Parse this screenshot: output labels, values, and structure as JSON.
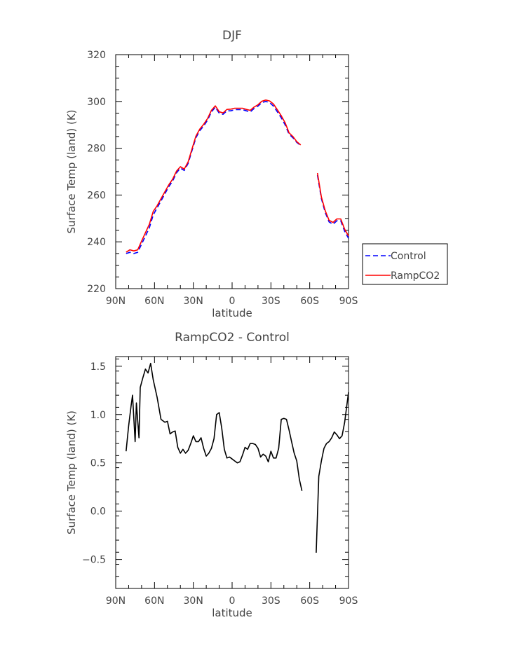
{
  "chart_data": [
    {
      "type": "line",
      "title": "DJF",
      "xlabel": "latitude",
      "ylabel": "Surface Temp (land) (K)",
      "xlim": [
        -90,
        90
      ],
      "ylim": [
        220,
        320
      ],
      "x_note": "x is latitude in degrees; negative = north (90N at left), positive = south (90S at right)",
      "x_ticks": [
        -90,
        -60,
        -30,
        0,
        30,
        60,
        90
      ],
      "x_tick_labels": [
        "90N",
        "60N",
        "30N",
        "0",
        "30S",
        "60S",
        "90S"
      ],
      "y_ticks": [
        220,
        240,
        260,
        280,
        300,
        320
      ],
      "y_tick_labels": [
        "220",
        "240",
        "260",
        "280",
        "300",
        "320"
      ],
      "legend": {
        "position": "outside-right",
        "entries": [
          "Control",
          "RampCO2"
        ]
      },
      "series": [
        {
          "name": "Control",
          "color": "#0000ff",
          "dash": "dashed",
          "segments": [
            {
              "x": [
                -82,
                -79,
                -76,
                -73,
                -70,
                -67,
                -64,
                -61,
                -58,
                -55,
                -52,
                -49,
                -46,
                -43,
                -40,
                -37,
                -34,
                -31,
                -28,
                -25,
                -22,
                -19,
                -16,
                -13,
                -10,
                -7,
                -4,
                -1,
                2,
                5,
                8,
                11,
                14,
                17,
                20,
                23,
                26,
                29,
                32,
                35,
                38,
                41,
                44,
                47,
                50,
                53
              ],
              "y": [
                235,
                235.5,
                235,
                235.5,
                239,
                242.5,
                246,
                251.5,
                254.5,
                257.5,
                260.5,
                263.5,
                266,
                269.5,
                271.5,
                270.5,
                273.5,
                279,
                284.5,
                287.5,
                289.5,
                292,
                295.5,
                297.5,
                295,
                294.5,
                296,
                296,
                296.5,
                296.5,
                296.5,
                296,
                295.5,
                297,
                298,
                299.5,
                300,
                299.5,
                298,
                295.5,
                293,
                290,
                286,
                284.5,
                282.5,
                281.2
              ]
            },
            {
              "x": [
                66,
                69,
                72,
                75,
                78,
                81,
                84,
                87,
                90
              ],
              "y": [
                268.5,
                258.5,
                252.5,
                248.5,
                247.5,
                249,
                249,
                244.5,
                241.5
              ]
            }
          ]
        },
        {
          "name": "RampCO2",
          "color": "#ff0000",
          "dash": "solid",
          "segments": [
            {
              "x": [
                -82,
                -79,
                -76,
                -73,
                -70,
                -67,
                -64,
                -61,
                -58,
                -55,
                -52,
                -49,
                -46,
                -43,
                -40,
                -37,
                -34,
                -31,
                -28,
                -25,
                -22,
                -19,
                -16,
                -13,
                -10,
                -7,
                -4,
                -1,
                2,
                5,
                8,
                11,
                14,
                17,
                20,
                23,
                26,
                29,
                32,
                35,
                38,
                41,
                44,
                47,
                50,
                53
              ],
              "y": [
                235.6,
                236.6,
                236.1,
                236.6,
                240.3,
                243.9,
                247.5,
                253,
                255.4,
                258.4,
                261.4,
                264.3,
                266.8,
                270.2,
                272.1,
                271.1,
                274.2,
                279.7,
                285.2,
                288.2,
                290.2,
                292.7,
                296.2,
                298.1,
                295.6,
                295.1,
                296.6,
                296.7,
                297.1,
                297.1,
                297.1,
                296.6,
                296.2,
                297.6,
                298.6,
                300.1,
                300.6,
                300.2,
                298.9,
                296.4,
                293.9,
                290.9,
                286.6,
                285,
                282.8,
                281.4
              ]
            },
            {
              "x": [
                66,
                69,
                72,
                75,
                78,
                81,
                84,
                87,
                90
              ],
              "y": [
                269.4,
                259.2,
                253.3,
                249.2,
                248.3,
                249.8,
                249.8,
                245.4,
                242.5
              ]
            }
          ]
        }
      ]
    },
    {
      "type": "line",
      "title": "RampCO2 - Control",
      "xlabel": "latitude",
      "ylabel": "Surface Temp (land) (K)",
      "xlim": [
        -90,
        90
      ],
      "ylim": [
        -0.8,
        1.6
      ],
      "x_ticks": [
        -90,
        -60,
        -30,
        0,
        30,
        60,
        90
      ],
      "x_tick_labels": [
        "90N",
        "60N",
        "30N",
        "0",
        "30S",
        "60S",
        "90S"
      ],
      "y_ticks": [
        -0.5,
        0.0,
        0.5,
        1.0,
        1.5
      ],
      "y_tick_labels": [
        "-0.5",
        "0.0",
        "0.5",
        "1.0",
        "1.5"
      ],
      "series": [
        {
          "color": "#000000",
          "dash": "solid",
          "segments": [
            {
              "x": [
                -82,
                -80,
                -78,
                -77,
                -75,
                -74,
                -72,
                -71,
                -69,
                -67,
                -65,
                -63,
                -61,
                -58,
                -55,
                -52,
                -50,
                -48,
                -46,
                -44,
                -42,
                -40,
                -38,
                -36,
                -34,
                -32,
                -30,
                -28,
                -26,
                -24,
                -22,
                -20,
                -18,
                -16,
                -14,
                -12,
                -10,
                -8,
                -6,
                -4,
                -2,
                0,
                2,
                4,
                6,
                8,
                10,
                12,
                14,
                16,
                18,
                20,
                22,
                24,
                26,
                28,
                30,
                32,
                34,
                36,
                38,
                40,
                42,
                44,
                46,
                48,
                50,
                52,
                54
              ],
              "y": [
                0.62,
                0.88,
                1.1,
                1.2,
                0.72,
                1.12,
                0.76,
                1.28,
                1.38,
                1.47,
                1.43,
                1.53,
                1.36,
                1.18,
                0.95,
                0.92,
                0.93,
                0.8,
                0.82,
                0.83,
                0.66,
                0.6,
                0.64,
                0.6,
                0.63,
                0.7,
                0.78,
                0.72,
                0.72,
                0.76,
                0.65,
                0.57,
                0.6,
                0.65,
                0.75,
                1.0,
                1.02,
                0.86,
                0.64,
                0.55,
                0.56,
                0.54,
                0.52,
                0.5,
                0.51,
                0.58,
                0.66,
                0.64,
                0.7,
                0.7,
                0.69,
                0.65,
                0.56,
                0.59,
                0.57,
                0.51,
                0.62,
                0.55,
                0.55,
                0.65,
                0.95,
                0.96,
                0.95,
                0.84,
                0.72,
                0.6,
                0.52,
                0.33,
                0.21
              ]
            },
            {
              "x": [
                65,
                67,
                69,
                71,
                73,
                75,
                77,
                79,
                81,
                83,
                85,
                87,
                89,
                90
              ],
              "y": [
                -0.43,
                0.36,
                0.52,
                0.65,
                0.7,
                0.72,
                0.76,
                0.82,
                0.79,
                0.75,
                0.78,
                0.92,
                1.13,
                1.23
              ]
            }
          ]
        }
      ]
    }
  ]
}
